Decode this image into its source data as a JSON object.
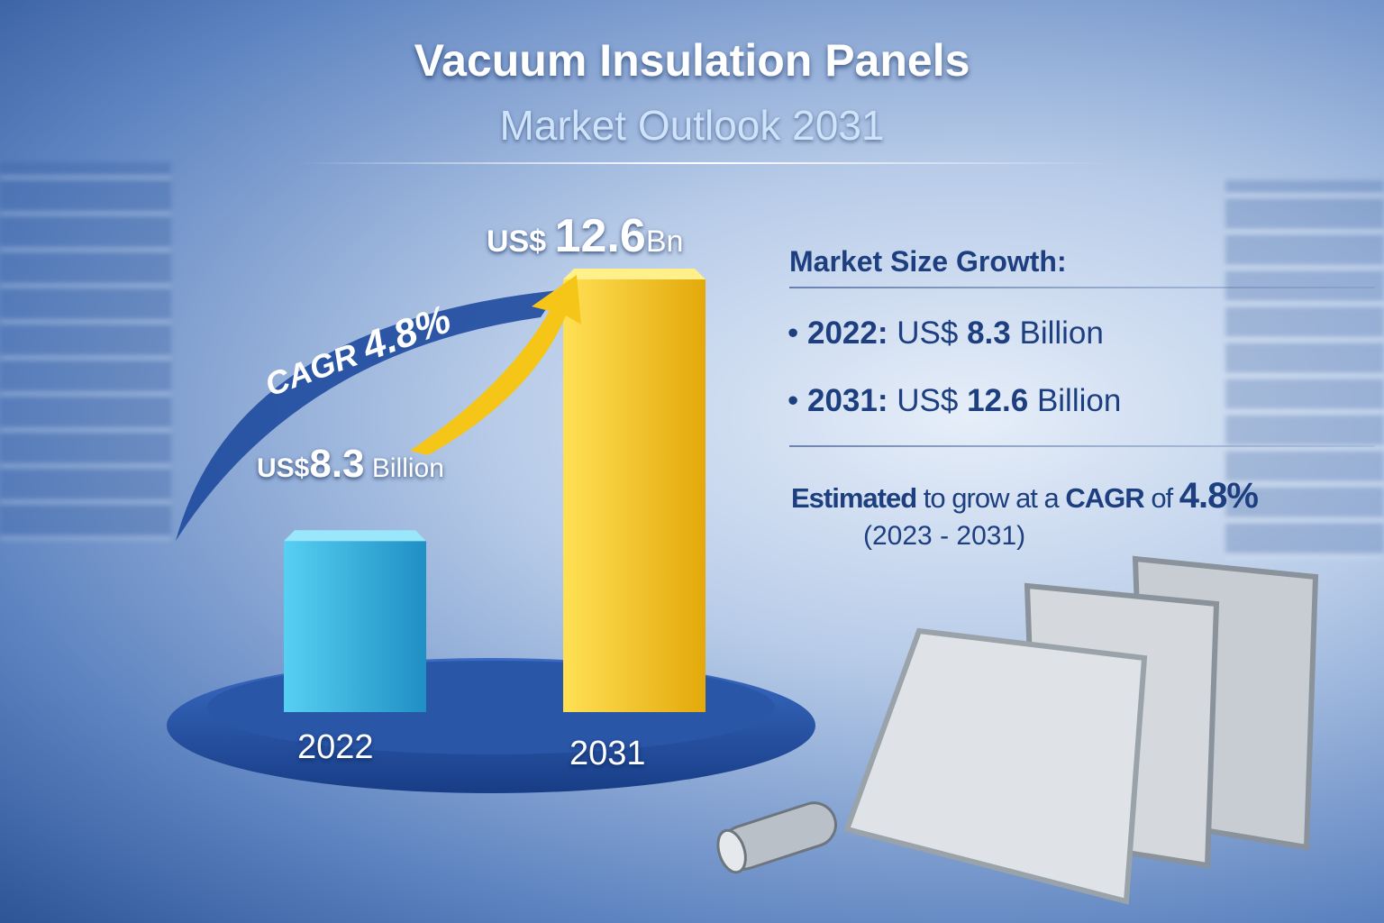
{
  "header": {
    "title": "Vacuum Insulation Panels",
    "subtitle": "Market Outlook 2031"
  },
  "chart_data": {
    "type": "bar",
    "categories": [
      "2022",
      "2031"
    ],
    "values": [
      8.3,
      12.6
    ],
    "unit": "US$ Billion",
    "data_labels": [
      {
        "prefix": "US$",
        "value": "8.3",
        "suffix": "Billion"
      },
      {
        "prefix": "US$",
        "value": "12.6",
        "suffix": "Bn"
      }
    ],
    "bar_colors": [
      "#3bb8e0",
      "#f5c518"
    ],
    "annotation": {
      "label": "CAGR",
      "value": "4.8%"
    },
    "title": "",
    "xlabel": "",
    "ylabel": "",
    "grid": false
  },
  "side_panel": {
    "heading": "Market Size Growth:",
    "items": [
      {
        "year": "2022:",
        "prefix": "US$",
        "value": "8.3",
        "unit": "Billion"
      },
      {
        "year": "2031:",
        "prefix": "US$",
        "value": "12.6",
        "unit": "Billion"
      }
    ],
    "cagr_line": {
      "lead": "Estimated",
      "mid": "to grow at a",
      "cagr": "CAGR",
      "of": "of",
      "value": "4.8%"
    },
    "period": "(2023 - 2031)"
  },
  "colors": {
    "accent": "#1d3f7f",
    "platform": "#2a56a8",
    "bar_2022": "#3bb8e0",
    "bar_2031": "#f5c518"
  }
}
